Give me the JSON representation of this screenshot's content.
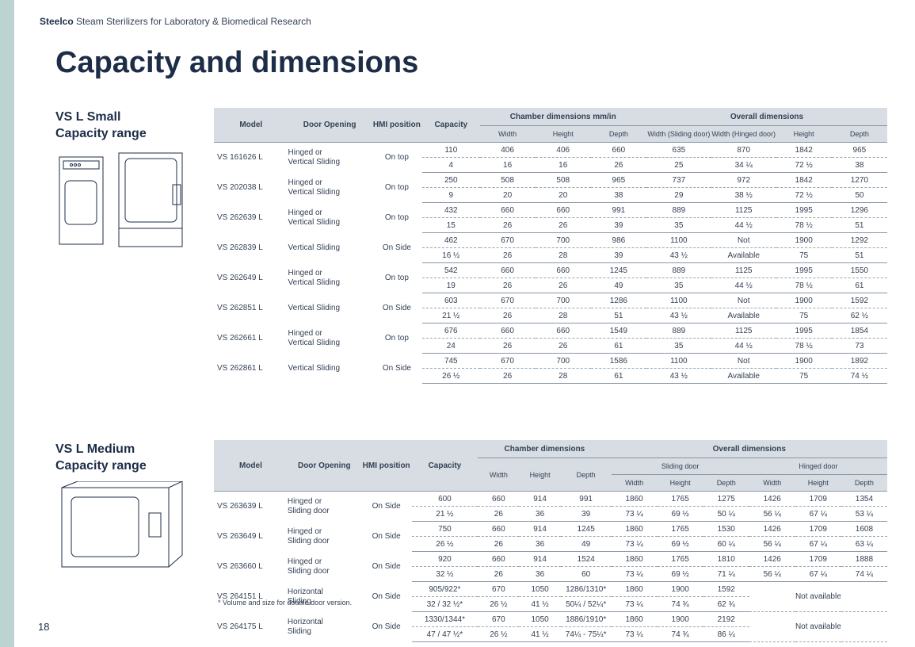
{
  "header": {
    "brand": "Steelco",
    "subtitle": "Steam Sterilizers for Laboratory & Biomedical Research"
  },
  "title": "Capacity and dimensions",
  "section1_title": "VS L Small Capacity range",
  "section2_title": "VS L Medium Capacity range",
  "footnote": "* Volume and size for double door version.",
  "pagenum": "18",
  "t1_head": {
    "model": "Model",
    "door": "Door Opening",
    "hmi": "HMI position",
    "cap": "Capacity",
    "chamber": "Chamber dimensions mm/in",
    "overall": "Overall dimensions",
    "c_w": "Width",
    "c_h": "Height",
    "c_d": "Depth",
    "o_ws": "Width (Sliding door)",
    "o_wh": "Width (Hinged door)",
    "o_h": "Height",
    "o_d": "Depth"
  },
  "t1": [
    {
      "model": "VS 161626 L",
      "door": "Hinged or Vertical Sliding",
      "hmi": "On top",
      "mm": {
        "cap": "110",
        "cw": "406",
        "ch": "406",
        "cd": "660",
        "ows": "635",
        "owh": "870",
        "oh": "1842",
        "od": "965"
      },
      "in": {
        "cap": "4",
        "cw": "16",
        "ch": "16",
        "cd": "26",
        "ows": "25",
        "owh": "34 ¼",
        "oh": "72 ½",
        "od": "38"
      }
    },
    {
      "model": "VS 202038 L",
      "door": "Hinged or Vertical Sliding",
      "hmi": "On top",
      "mm": {
        "cap": "250",
        "cw": "508",
        "ch": "508",
        "cd": "965",
        "ows": "737",
        "owh": "972",
        "oh": "1842",
        "od": "1270"
      },
      "in": {
        "cap": "9",
        "cw": "20",
        "ch": "20",
        "cd": "38",
        "ows": "29",
        "owh": "38 ½",
        "oh": "72 ½",
        "od": "50"
      }
    },
    {
      "model": "VS 262639 L",
      "door": "Hinged or Vertical Sliding",
      "hmi": "On top",
      "mm": {
        "cap": "432",
        "cw": "660",
        "ch": "660",
        "cd": "991",
        "ows": "889",
        "owh": "1125",
        "oh": "1995",
        "od": "1296"
      },
      "in": {
        "cap": "15",
        "cw": "26",
        "ch": "26",
        "cd": "39",
        "ows": "35",
        "owh": "44 ½",
        "oh": "78 ½",
        "od": "51"
      }
    },
    {
      "model": "VS 262839 L",
      "door": "Vertical Sliding",
      "hmi": "On Side",
      "mm": {
        "cap": "462",
        "cw": "670",
        "ch": "700",
        "cd": "986",
        "ows": "1100",
        "owh": "Not",
        "oh": "1900",
        "od": "1292"
      },
      "in": {
        "cap": "16 ½",
        "cw": "26",
        "ch": "28",
        "cd": "39",
        "ows": "43 ½",
        "owh": "Available",
        "oh": "75",
        "od": "51"
      }
    },
    {
      "model": "VS 262649 L",
      "door": "Hinged or Vertical Sliding",
      "hmi": "On top",
      "mm": {
        "cap": "542",
        "cw": "660",
        "ch": "660",
        "cd": "1245",
        "ows": "889",
        "owh": "1125",
        "oh": "1995",
        "od": "1550"
      },
      "in": {
        "cap": "19",
        "cw": "26",
        "ch": "26",
        "cd": "49",
        "ows": "35",
        "owh": "44 ½",
        "oh": "78 ½",
        "od": "61"
      }
    },
    {
      "model": "VS 262851 L",
      "door": "Vertical Sliding",
      "hmi": "On Side",
      "mm": {
        "cap": "603",
        "cw": "670",
        "ch": "700",
        "cd": "1286",
        "ows": "1100",
        "owh": "Not",
        "oh": "1900",
        "od": "1592"
      },
      "in": {
        "cap": "21 ½",
        "cw": "26",
        "ch": "28",
        "cd": "51",
        "ows": "43 ½",
        "owh": "Available",
        "oh": "75",
        "od": "62 ½"
      }
    },
    {
      "model": "VS 262661 L",
      "door": "Hinged or Vertical Sliding",
      "hmi": "On top",
      "mm": {
        "cap": "676",
        "cw": "660",
        "ch": "660",
        "cd": "1549",
        "ows": "889",
        "owh": "1125",
        "oh": "1995",
        "od": "1854"
      },
      "in": {
        "cap": "24",
        "cw": "26",
        "ch": "26",
        "cd": "61",
        "ows": "35",
        "owh": "44 ½",
        "oh": "78 ½",
        "od": "73"
      }
    },
    {
      "model": "VS 262861 L",
      "door": "Vertical Sliding",
      "hmi": "On Side",
      "mm": {
        "cap": "745",
        "cw": "670",
        "ch": "700",
        "cd": "1586",
        "ows": "1100",
        "owh": "Not",
        "oh": "1900",
        "od": "1892"
      },
      "in": {
        "cap": "26 ½",
        "cw": "26",
        "ch": "28",
        "cd": "61",
        "ows": "43 ½",
        "owh": "Available",
        "oh": "75",
        "od": "74 ½"
      }
    }
  ],
  "t2_head": {
    "model": "Model",
    "door": "Door Opening",
    "hmi": "HMI position",
    "cap": "Capacity",
    "chamber": "Chamber dimensions",
    "overall": "Overall dimensions",
    "c_w": "Width",
    "c_h": "Height",
    "c_d": "Depth",
    "slide": "Sliding door",
    "hinge": "Hinged door",
    "w": "Width",
    "h": "Height",
    "d": "Depth",
    "na": "Not available"
  },
  "t2": [
    {
      "model": "VS 263639 L",
      "door": "Hinged or Sliding door",
      "hmi": "On Side",
      "mm": {
        "cap": "600",
        "cw": "660",
        "ch": "914",
        "cd": "991",
        "sw": "1860",
        "sh": "1765",
        "sd": "1275",
        "hw": "1426",
        "hh": "1709",
        "hd": "1354"
      },
      "in": {
        "cap": "21 ½",
        "cw": "26",
        "ch": "36",
        "cd": "39",
        "sw": "73 ¼",
        "sh": "69 ½",
        "sd": "50 ¼",
        "hw": "56 ¼",
        "hh": "67 ¼",
        "hd": "53 ¼"
      }
    },
    {
      "model": "VS 263649 L",
      "door": "Hinged or Sliding door",
      "hmi": "On Side",
      "mm": {
        "cap": "750",
        "cw": "660",
        "ch": "914",
        "cd": "1245",
        "sw": "1860",
        "sh": "1765",
        "sd": "1530",
        "hw": "1426",
        "hh": "1709",
        "hd": "1608"
      },
      "in": {
        "cap": "26 ½",
        "cw": "26",
        "ch": "36",
        "cd": "49",
        "sw": "73 ¼",
        "sh": "69 ½",
        "sd": "60 ¼",
        "hw": "56 ¼",
        "hh": "67 ¼",
        "hd": "63 ¼"
      }
    },
    {
      "model": "VS 263660 L",
      "door": "Hinged or Sliding door",
      "hmi": "On Side",
      "mm": {
        "cap": "920",
        "cw": "660",
        "ch": "914",
        "cd": "1524",
        "sw": "1860",
        "sh": "1765",
        "sd": "1810",
        "hw": "1426",
        "hh": "1709",
        "hd": "1888"
      },
      "in": {
        "cap": "32 ½",
        "cw": "26",
        "ch": "36",
        "cd": "60",
        "sw": "73 ¼",
        "sh": "69 ½",
        "sd": "71 ¼",
        "hw": "56 ¼",
        "hh": "67 ¼",
        "hd": "74 ¼"
      }
    },
    {
      "model": "VS 264151 L",
      "door": "Horizontal Sliding",
      "hmi": "On Side",
      "na": true,
      "mm": {
        "cap": "905/922*",
        "cw": "670",
        "ch": "1050",
        "cd": "1286/1310*",
        "sw": "1860",
        "sh": "1900",
        "sd": "1592",
        "hw": "",
        "hh": "",
        "hd": ""
      },
      "in": {
        "cap": "32 / 32 ½*",
        "cw": "26 ½",
        "ch": "41 ½",
        "cd": "50¼ / 52¼*",
        "sw": "73 ¼",
        "sh": "74 ¾",
        "sd": "62 ¾",
        "hw": "",
        "hh": "",
        "hd": ""
      }
    },
    {
      "model": "VS 264175 L",
      "door": "Horizontal Sliding",
      "hmi": "On Side",
      "na": true,
      "mm": {
        "cap": "1330/1344*",
        "cw": "670",
        "ch": "1050",
        "cd": "1886/1910*",
        "sw": "1860",
        "sh": "1900",
        "sd": "2192",
        "hw": "",
        "hh": "",
        "hd": ""
      },
      "in": {
        "cap": "47 / 47 ½*",
        "cw": "26 ½",
        "ch": "41 ½",
        "cd": "74¼ - 75¼*",
        "sw": "73 ¼",
        "sh": "74 ¾",
        "sd": "86 ¼",
        "hw": "",
        "hh": "",
        "hd": ""
      }
    }
  ]
}
